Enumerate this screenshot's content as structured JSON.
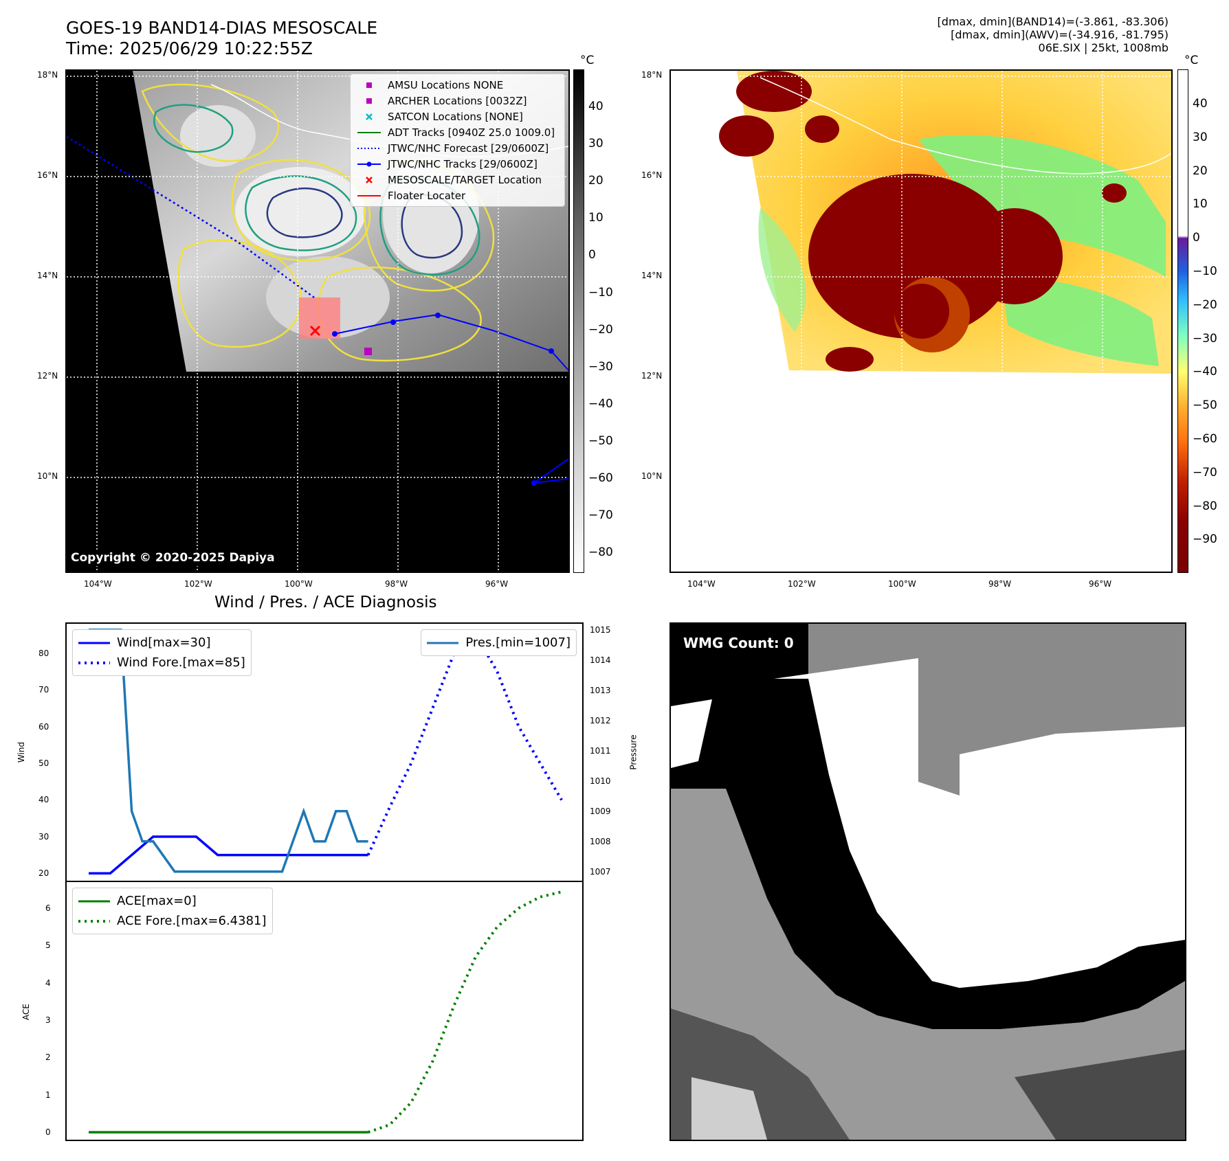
{
  "header": {
    "title_line1": "GOES-19 BAND14-DIAS MESOSCALE",
    "title_line2": "Time: 2025/06/29 10:22:55Z",
    "info_line1": "[dmax, dmin](BAND14)=(-3.861, -83.306)",
    "info_line2": "[dmax, dmin](AWV)=(-34.916, -81.795)",
    "info_line3": "06E.SIX | 25kt, 1008mb"
  },
  "ir_map": {
    "lat_labels": [
      "18°N",
      "16°N",
      "14°N",
      "12°N",
      "10°N"
    ],
    "lon_labels": [
      "104°W",
      "102°W",
      "100°W",
      "98°W",
      "96°W"
    ],
    "colorbar_unit": "°C",
    "colorbar_ticks": [
      "40",
      "30",
      "20",
      "10",
      "0",
      "−10",
      "−20",
      "−30",
      "−40",
      "−50",
      "−60",
      "−70",
      "−80"
    ],
    "copyright": "Copyright © 2020-2025 Dapiya",
    "legend": [
      {
        "label": "AMSU Locations NONE",
        "color": "#bf00bf",
        "symbol": "square"
      },
      {
        "label": "ARCHER Locations [0032Z]",
        "color": "#bf00bf",
        "symbol": "square"
      },
      {
        "label": "SATCON Locations [NONE]",
        "color": "#00bfbf",
        "symbol": "x"
      },
      {
        "label": "ADT Tracks [0940Z 25.0 1009.0]",
        "color": "#008000",
        "symbol": "line"
      },
      {
        "label": "JTWC/NHC Forecast [29/0600Z]",
        "color": "#0000ff",
        "symbol": "dotted"
      },
      {
        "label": "JTWC/NHC Tracks [29/0600Z]",
        "color": "#0000ff",
        "symbol": "line-dot"
      },
      {
        "label": "MESOSCALE/TARGET Location",
        "color": "#ff0000",
        "symbol": "x"
      },
      {
        "label": "Floater Locater",
        "color": "#ff0000",
        "symbol": "line"
      }
    ]
  },
  "awv_map": {
    "lat_labels": [
      "18°N",
      "16°N",
      "14°N",
      "12°N",
      "10°N"
    ],
    "lon_labels": [
      "104°W",
      "102°W",
      "100°W",
      "98°W",
      "96°W"
    ],
    "colorbar_unit": "°C",
    "colorbar_ticks": [
      "40",
      "30",
      "20",
      "10",
      "0",
      "−10",
      "−20",
      "−30",
      "−40",
      "−50",
      "−60",
      "−70",
      "−80",
      "−90"
    ]
  },
  "diag": {
    "title": "Wind / Pres. / ACE Diagnosis",
    "wind_ylabel": "Wind",
    "pres_ylabel": "Pressure",
    "ace_ylabel": "ACE",
    "wind_ticks": [
      "80",
      "70",
      "60",
      "50",
      "40",
      "30",
      "20"
    ],
    "pres_ticks": [
      "1015",
      "1014",
      "1013",
      "1012",
      "1011",
      "1010",
      "1009",
      "1008",
      "1007"
    ],
    "ace_ticks": [
      "6",
      "5",
      "4",
      "3",
      "2",
      "1",
      "0"
    ],
    "legend_wind": "Wind[max=30]",
    "legend_wind_fore": "Wind Fore.[max=85]",
    "legend_pres": "Pres.[min=1007]",
    "legend_ace": "ACE[max=0]",
    "legend_ace_fore": "ACE Fore.[max=6.4381]"
  },
  "wmg": {
    "label": "WMG Count: 0"
  },
  "chart_data": [
    {
      "type": "line",
      "title": "Wind / Pres. / ACE Diagnosis",
      "ylabel": "Wind",
      "ylim": [
        18,
        88
      ],
      "y2label": "Pressure",
      "y2lim": [
        1006.7,
        1015.2
      ],
      "x": [
        0,
        1,
        2,
        3,
        4,
        5,
        6,
        7,
        8,
        9,
        10,
        11,
        12,
        13,
        14,
        15,
        16,
        17,
        18,
        19,
        20,
        21,
        22
      ],
      "series": [
        {
          "name": "Wind[max=30]",
          "axis": "left",
          "style": "solid",
          "color": "#0000ff",
          "x": [
            0,
            1,
            2,
            3,
            4,
            5,
            6,
            7,
            8,
            9,
            10,
            11,
            12,
            13
          ],
          "values": [
            20,
            20,
            25,
            30,
            30,
            30,
            25,
            25,
            25,
            25,
            25,
            25,
            25,
            25
          ]
        },
        {
          "name": "Wind Fore.[max=85]",
          "axis": "left",
          "style": "dotted",
          "color": "#0000ff",
          "x": [
            13,
            14,
            15,
            16,
            17,
            18,
            19,
            20,
            21,
            22
          ],
          "values": [
            25,
            38,
            50,
            65,
            80,
            85,
            75,
            60,
            50,
            40
          ]
        },
        {
          "name": "Pres.[min=1007]",
          "axis": "right",
          "style": "solid",
          "color": "#1f77b4",
          "x": [
            0,
            1,
            1.5,
            2,
            2.5,
            3,
            4,
            5,
            6,
            7,
            8,
            9,
            9.5,
            10,
            10.5,
            11,
            11.5,
            12,
            12.5,
            13
          ],
          "values": [
            1015,
            1015,
            1015,
            1009,
            1008,
            1008,
            1007,
            1007,
            1007,
            1007,
            1007,
            1007,
            1008,
            1009,
            1008,
            1008,
            1009,
            1009,
            1008,
            1008
          ]
        }
      ]
    },
    {
      "type": "line",
      "ylabel": "ACE",
      "ylim": [
        -0.2,
        6.7
      ],
      "series": [
        {
          "name": "ACE[max=0]",
          "style": "solid",
          "color": "#008000",
          "x": [
            0,
            13
          ],
          "values": [
            0,
            0
          ]
        },
        {
          "name": "ACE Fore.[max=6.4381]",
          "style": "dotted",
          "color": "#008000",
          "x": [
            13,
            14,
            15,
            16,
            17,
            18,
            19,
            20,
            21,
            22
          ],
          "values": [
            0,
            0.2,
            0.8,
            1.9,
            3.4,
            4.7,
            5.5,
            6.0,
            6.3,
            6.4381
          ]
        }
      ]
    }
  ]
}
